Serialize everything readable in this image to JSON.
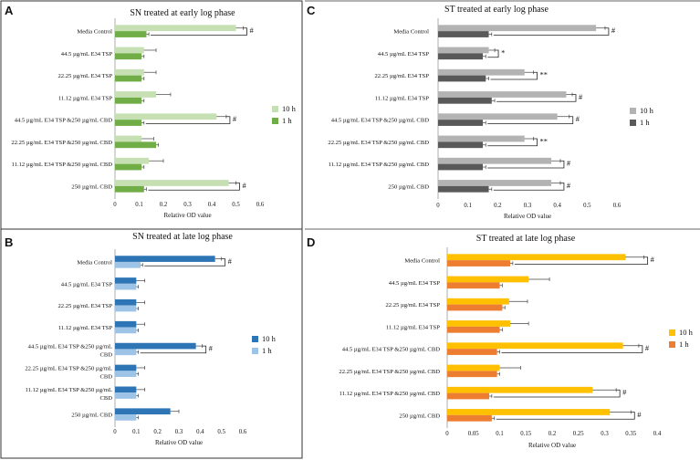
{
  "chart_data": [
    {
      "id": "A",
      "type": "bar",
      "orientation": "horizontal",
      "title": "SN treated at early log phase",
      "xlabel": "Relative OD value",
      "xlim": [
        0,
        0.6
      ],
      "xticks": [
        "0",
        "0.1",
        "0.2",
        "0.3",
        "0.4",
        "0.5",
        "0.6"
      ],
      "xtick_values": [
        0,
        0.1,
        0.2,
        0.3,
        0.4,
        0.5,
        0.6
      ],
      "categories": [
        "Media Control",
        "44.5 µg/mL E34 TSP",
        "22.25 µg/mL E34 TSP",
        "11.12 µg/mL E34 TSP",
        "44.5 µg/mL E34 TSP &250 µg/mL CBD",
        "22.25 µg/mL E34 TSP &250 µg/mL CBD",
        "11.12 µg/mL E34 TSP &250 µg/mL CBD",
        "250 µg/mL CBD"
      ],
      "series": [
        {
          "name": "10 h",
          "color": "#c6e0b4",
          "values": [
            0.5,
            0.12,
            0.12,
            0.17,
            0.42,
            0.11,
            0.14,
            0.47
          ],
          "errors": [
            0.03,
            0.05,
            0.05,
            0.06,
            0.04,
            0.05,
            0.06,
            0.03
          ]
        },
        {
          "name": "1 h",
          "color": "#70ad47",
          "values": [
            0.13,
            0.11,
            0.11,
            0.11,
            0.11,
            0.17,
            0.11,
            0.12
          ],
          "errors": [
            0.01,
            0.01,
            0.01,
            0.01,
            0.01,
            0.01,
            0.01,
            0.01
          ]
        }
      ],
      "significance": [
        "#",
        "",
        "",
        "",
        "#",
        "",
        "",
        "#"
      ]
    },
    {
      "id": "B",
      "type": "bar",
      "orientation": "horizontal",
      "title": "SN treated at late log phase",
      "xlabel": "Relative OD value",
      "xlim": [
        0,
        0.6
      ],
      "xticks": [
        "0",
        "0.1",
        "0.2",
        "0.3",
        "0.4",
        "0.5",
        "0.6"
      ],
      "xtick_values": [
        0,
        0.1,
        0.2,
        0.3,
        0.4,
        0.5,
        0.6
      ],
      "categories": [
        "Media Control",
        "44.5 µg/mL E34 TSP",
        "22.25 µg/mL E34 TSP",
        "11.12 µg/mL E34 TSP",
        [
          "44.5 µg/mL E34 TSP &250 µg/mL",
          "CBD"
        ],
        [
          "22.25 µg/mL E34 TSP &250 µg/mL",
          "CBD"
        ],
        [
          "11.12 µg/mL E34 TSP &250 µg/mL",
          "CBD"
        ],
        "250 µg/mL CBD"
      ],
      "series": [
        {
          "name": "10 h",
          "color": "#2e75b6",
          "values": [
            0.47,
            0.1,
            0.1,
            0.1,
            0.38,
            0.1,
            0.1,
            0.26
          ],
          "errors": [
            0.03,
            0.04,
            0.04,
            0.04,
            0.03,
            0.04,
            0.04,
            0.04
          ]
        },
        {
          "name": "1 h",
          "color": "#9dc3e6",
          "values": [
            0.12,
            0.1,
            0.1,
            0.1,
            0.1,
            0.1,
            0.1,
            0.1
          ],
          "errors": [
            0.01,
            0.01,
            0.01,
            0.01,
            0.01,
            0.01,
            0.01,
            0.01
          ]
        }
      ],
      "significance": [
        "#",
        "",
        "",
        "",
        "#",
        "",
        "",
        ""
      ]
    },
    {
      "id": "C",
      "type": "bar",
      "orientation": "horizontal",
      "title": "ST treated at early log phase",
      "xlabel": "Relative OD value",
      "xlim": [
        0,
        0.6
      ],
      "xticks": [
        "0",
        "0.1",
        "0.2",
        "0.3",
        "0.4",
        "0.5",
        "0.6"
      ],
      "xtick_values": [
        0,
        0.1,
        0.2,
        0.3,
        0.4,
        0.5,
        0.6
      ],
      "categories": [
        "Media Control",
        "44.5 µg/mL E34 TSP",
        "22.25 µg/mL E34 TSP",
        "11.12 µg/mL E34 TSP",
        "44.5 µg/mL E34 TSP &250 µg/mL CBD",
        "22.25 µg/mL E34 TSP &250 µg/mL CBD",
        "11.12 µg/mL E34 TSP &250 µg/mL CBD",
        "250 µg/mL CBD"
      ],
      "series": [
        {
          "name": "10 h",
          "color": "#b3b3b3",
          "values": [
            0.53,
            0.17,
            0.29,
            0.43,
            0.4,
            0.29,
            0.38,
            0.38
          ],
          "errors": [
            0.03,
            0.02,
            0.03,
            0.02,
            0.04,
            0.03,
            0.03,
            0.03
          ]
        },
        {
          "name": "1 h",
          "color": "#595959",
          "values": [
            0.17,
            0.15,
            0.16,
            0.18,
            0.15,
            0.15,
            0.15,
            0.17
          ],
          "errors": [
            0.01,
            0.01,
            0.01,
            0.01,
            0.01,
            0.01,
            0.01,
            0.01
          ]
        }
      ],
      "significance": [
        "#",
        "*",
        "**",
        "#",
        "#",
        "**",
        "#",
        "#"
      ]
    },
    {
      "id": "D",
      "type": "bar",
      "orientation": "horizontal",
      "title": "ST treated at late log phase",
      "xlabel": "Relative OD value",
      "xlim": [
        0,
        0.4
      ],
      "xticks": [
        "0",
        "0.05",
        "0.1",
        "0.15",
        "0.2",
        "0.25",
        "0.3",
        "0.35",
        "0.4"
      ],
      "xtick_values": [
        0,
        0.05,
        0.1,
        0.15,
        0.2,
        0.25,
        0.3,
        0.35,
        0.4
      ],
      "categories": [
        "Media Control",
        "44.5 µg/mL E34 TSP",
        "22.25 µg/mL E34 TSP",
        "11.12 µg/mL E34 TSP",
        "44.5 µg/mL E34 TSP &250 µg/mL CBD",
        "22.25 µg/mL E34 TSP &250 µg/mL CBD",
        "11.12 µg/mL E34 TSP &250 µg/mL CBD",
        "250 µg/mL CBD"
      ],
      "series": [
        {
          "name": "10 h",
          "color": "#ffc000",
          "values": [
            0.34,
            0.155,
            0.118,
            0.12,
            0.335,
            0.1,
            0.277,
            0.31
          ],
          "errors": [
            0.035,
            0.04,
            0.035,
            0.035,
            0.03,
            0.04,
            0.045,
            0.04
          ]
        },
        {
          "name": "1 h",
          "color": "#ed7d31",
          "values": [
            0.12,
            0.1,
            0.105,
            0.1,
            0.095,
            0.095,
            0.08,
            0.085
          ],
          "errors": [
            0.005,
            0.005,
            0.005,
            0.005,
            0.005,
            0.005,
            0.005,
            0.005
          ]
        }
      ],
      "significance": [
        "#",
        "",
        "",
        "",
        "#",
        "",
        "#",
        "#"
      ]
    }
  ]
}
